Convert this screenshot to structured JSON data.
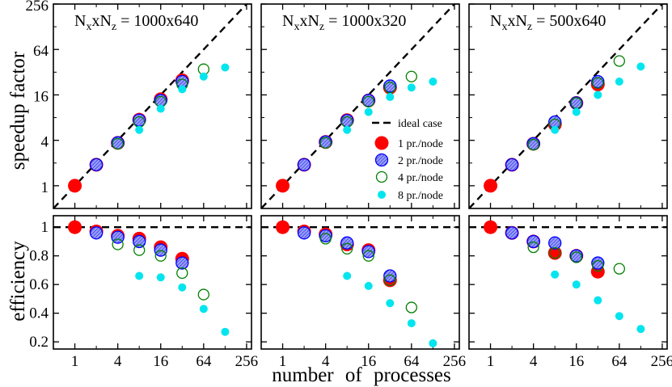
{
  "figure": {
    "ylabel_top": "speedup factor",
    "ylabel_bottom": "efficiency",
    "xlabel": "number of processes"
  },
  "chart_data": [
    {
      "type": "scatter",
      "panel": "speedup",
      "title": "NxxNz = 1000x640",
      "title_main": "N",
      "title_sub1": "x",
      "title_mid": "xN",
      "title_sub2": "z",
      "title_tail": " = 1000x640",
      "xscale": "log2",
      "yscale": "log2",
      "xlim": [
        0.5,
        300
      ],
      "ylim": [
        0.5,
        256
      ],
      "xticks": [
        1,
        4,
        16,
        64,
        256
      ],
      "xtick_labels": [
        "1",
        "4",
        "16",
        "64",
        "256"
      ],
      "yticks": [
        1,
        4,
        16,
        64,
        256
      ],
      "ytick_labels": [
        "1",
        "4",
        "16",
        "64",
        "256"
      ],
      "ideal": true,
      "series": [
        {
          "name": "1 pr./node",
          "x": [
            1,
            2,
            4,
            8,
            16,
            32
          ],
          "y": [
            1,
            1.9,
            3.7,
            7.5,
            14,
            25
          ]
        },
        {
          "name": "2 pr./node",
          "x": [
            2,
            4,
            8,
            16,
            32
          ],
          "y": [
            1.9,
            3.7,
            7.4,
            13.5,
            24
          ]
        },
        {
          "name": "4 pr./node",
          "x": [
            4,
            8,
            16,
            32,
            64
          ],
          "y": [
            3.6,
            7,
            13,
            22,
            35
          ]
        },
        {
          "name": "8 pr./node",
          "x": [
            8,
            16,
            32,
            64,
            128
          ],
          "y": [
            5.5,
            10.5,
            19,
            28,
            37
          ]
        }
      ]
    },
    {
      "type": "scatter",
      "panel": "speedup",
      "title": "NxxNz = 1000x320",
      "title_main": "N",
      "title_sub1": "x",
      "title_mid": "xN",
      "title_sub2": "z",
      "title_tail": " = 1000x320",
      "xscale": "log2",
      "yscale": "log2",
      "xlim": [
        0.5,
        300
      ],
      "ylim": [
        0.5,
        256
      ],
      "xticks": [
        1,
        4,
        16,
        64,
        256
      ],
      "xtick_labels": [
        "1",
        "4",
        "16",
        "64",
        "256"
      ],
      "yticks": [
        1,
        4,
        16,
        64,
        256
      ],
      "ytick_labels": [],
      "ideal": true,
      "series": [
        {
          "name": "1 pr./node",
          "x": [
            1,
            2,
            4,
            8,
            16,
            32
          ],
          "y": [
            1,
            1.9,
            3.8,
            7.4,
            13.5,
            20
          ]
        },
        {
          "name": "2 pr./node",
          "x": [
            2,
            4,
            8,
            16,
            32
          ],
          "y": [
            1.9,
            3.8,
            7.3,
            13.5,
            21
          ]
        },
        {
          "name": "4 pr./node",
          "x": [
            4,
            8,
            16,
            32,
            64
          ],
          "y": [
            3.7,
            7,
            13,
            20,
            28
          ]
        },
        {
          "name": "8 pr./node",
          "x": [
            8,
            16,
            32,
            64,
            128
          ],
          "y": [
            5.5,
            9.5,
            15,
            20,
            24
          ]
        }
      ]
    },
    {
      "type": "scatter",
      "panel": "speedup",
      "title": "NxxNz = 500x640",
      "title_main": "N",
      "title_sub1": "x",
      "title_mid": "xN",
      "title_sub2": "z",
      "title_tail": " = 500x640",
      "xscale": "log2",
      "yscale": "log2",
      "xlim": [
        0.5,
        300
      ],
      "ylim": [
        0.5,
        256
      ],
      "xticks": [
        1,
        4,
        16,
        64,
        256
      ],
      "xtick_labels": [
        "1",
        "4",
        "16",
        "64",
        "256"
      ],
      "yticks": [
        1,
        4,
        16,
        64,
        256
      ],
      "ytick_labels": [],
      "ideal": true,
      "series": [
        {
          "name": "1 pr./node",
          "x": [
            1,
            2,
            4,
            8,
            16,
            32
          ],
          "y": [
            1,
            1.9,
            3.6,
            6.5,
            12.5,
            22
          ]
        },
        {
          "name": "2 pr./node",
          "x": [
            2,
            4,
            8,
            16,
            32
          ],
          "y": [
            1.9,
            3.6,
            7,
            12.5,
            24
          ]
        },
        {
          "name": "4 pr./node",
          "x": [
            4,
            8,
            16,
            32,
            64
          ],
          "y": [
            3.5,
            6.5,
            12.5,
            23,
            45
          ]
        },
        {
          "name": "8 pr./node",
          "x": [
            8,
            16,
            32,
            64,
            128
          ],
          "y": [
            5.5,
            9.5,
            16,
            24,
            38
          ]
        }
      ]
    },
    {
      "type": "scatter",
      "panel": "efficiency",
      "xscale": "log2",
      "yscale": "linear",
      "xlim": [
        0.5,
        300
      ],
      "ylim": [
        0.15,
        1.08
      ],
      "xticks": [
        1,
        4,
        16,
        64,
        256
      ],
      "xtick_labels": [
        "1",
        "4",
        "16",
        "64",
        "256"
      ],
      "yticks": [
        0.2,
        0.4,
        0.6,
        0.8,
        1
      ],
      "ytick_labels": [
        "0.2",
        "0.4",
        "0.6",
        "0.8",
        "1"
      ],
      "ideal": true,
      "series": [
        {
          "name": "1 pr./node",
          "x": [
            1,
            2,
            4,
            8,
            16,
            32
          ],
          "y": [
            1.0,
            0.97,
            0.94,
            0.92,
            0.86,
            0.78
          ]
        },
        {
          "name": "2 pr./node",
          "x": [
            2,
            4,
            8,
            16,
            32
          ],
          "y": [
            0.96,
            0.93,
            0.9,
            0.84,
            0.75
          ]
        },
        {
          "name": "4 pr./node",
          "x": [
            4,
            8,
            16,
            32,
            64
          ],
          "y": [
            0.88,
            0.84,
            0.8,
            0.68,
            0.53
          ]
        },
        {
          "name": "8 pr./node",
          "x": [
            8,
            16,
            32,
            64,
            128
          ],
          "y": [
            0.66,
            0.65,
            0.58,
            0.43,
            0.27
          ]
        }
      ]
    },
    {
      "type": "scatter",
      "panel": "efficiency",
      "xscale": "log2",
      "yscale": "linear",
      "xlim": [
        0.5,
        300
      ],
      "ylim": [
        0.15,
        1.08
      ],
      "xticks": [
        1,
        4,
        16,
        64,
        256
      ],
      "xtick_labels": [
        "1",
        "4",
        "16",
        "64",
        "256"
      ],
      "yticks": [
        0.2,
        0.4,
        0.6,
        0.8,
        1
      ],
      "ytick_labels": [],
      "ideal": true,
      "series": [
        {
          "name": "1 pr./node",
          "x": [
            1,
            2,
            4,
            8,
            16,
            32
          ],
          "y": [
            1.0,
            0.97,
            0.95,
            0.88,
            0.84,
            0.63
          ]
        },
        {
          "name": "2 pr./node",
          "x": [
            2,
            4,
            8,
            16,
            32
          ],
          "y": [
            0.96,
            0.94,
            0.89,
            0.83,
            0.66
          ]
        },
        {
          "name": "4 pr./node",
          "x": [
            4,
            8,
            16,
            32,
            64
          ],
          "y": [
            0.92,
            0.85,
            0.8,
            0.63,
            0.44
          ]
        },
        {
          "name": "8 pr./node",
          "x": [
            8,
            16,
            32,
            64,
            128
          ],
          "y": [
            0.66,
            0.59,
            0.47,
            0.33,
            0.19
          ]
        }
      ]
    },
    {
      "type": "scatter",
      "panel": "efficiency",
      "xscale": "log2",
      "yscale": "linear",
      "xlim": [
        0.5,
        300
      ],
      "ylim": [
        0.15,
        1.08
      ],
      "xticks": [
        1,
        4,
        16,
        64,
        256
      ],
      "xtick_labels": [
        "1",
        "4",
        "16",
        "64",
        "256"
      ],
      "yticks": [
        0.2,
        0.4,
        0.6,
        0.8,
        1
      ],
      "ytick_labels": [],
      "ideal": true,
      "series": [
        {
          "name": "1 pr./node",
          "x": [
            1,
            2,
            4,
            8,
            16,
            32
          ],
          "y": [
            1.0,
            0.96,
            0.9,
            0.82,
            0.8,
            0.69
          ]
        },
        {
          "name": "2 pr./node",
          "x": [
            2,
            4,
            8,
            16,
            32
          ],
          "y": [
            0.96,
            0.9,
            0.89,
            0.8,
            0.75
          ]
        },
        {
          "name": "4 pr./node",
          "x": [
            4,
            8,
            16,
            32,
            64
          ],
          "y": [
            0.86,
            0.82,
            0.79,
            0.73,
            0.71
          ]
        },
        {
          "name": "8 pr./node",
          "x": [
            8,
            16,
            32,
            64,
            128
          ],
          "y": [
            0.67,
            0.6,
            0.49,
            0.38,
            0.29
          ]
        }
      ]
    }
  ],
  "legend": {
    "placement": "lower-right of middle speedup panel",
    "entries": [
      {
        "label": "ideal case",
        "style": "ideal"
      },
      {
        "label": "1 pr./node",
        "style": "s1"
      },
      {
        "label": "2 pr./node",
        "style": "s2"
      },
      {
        "label": "4 pr./node",
        "style": "s3"
      },
      {
        "label": "8 pr./node",
        "style": "s4"
      }
    ]
  },
  "styles": {
    "s1": {
      "fill": "#ff0000",
      "stroke": "#ff0000"
    },
    "s2": {
      "fill": "hatch-blue",
      "stroke": "#0000ff"
    },
    "s3": {
      "fill": "none",
      "stroke": "#008000"
    },
    "s4": {
      "fill": "#00e5ee",
      "stroke": "#00e5ee"
    },
    "ideal_color": "#000000"
  }
}
